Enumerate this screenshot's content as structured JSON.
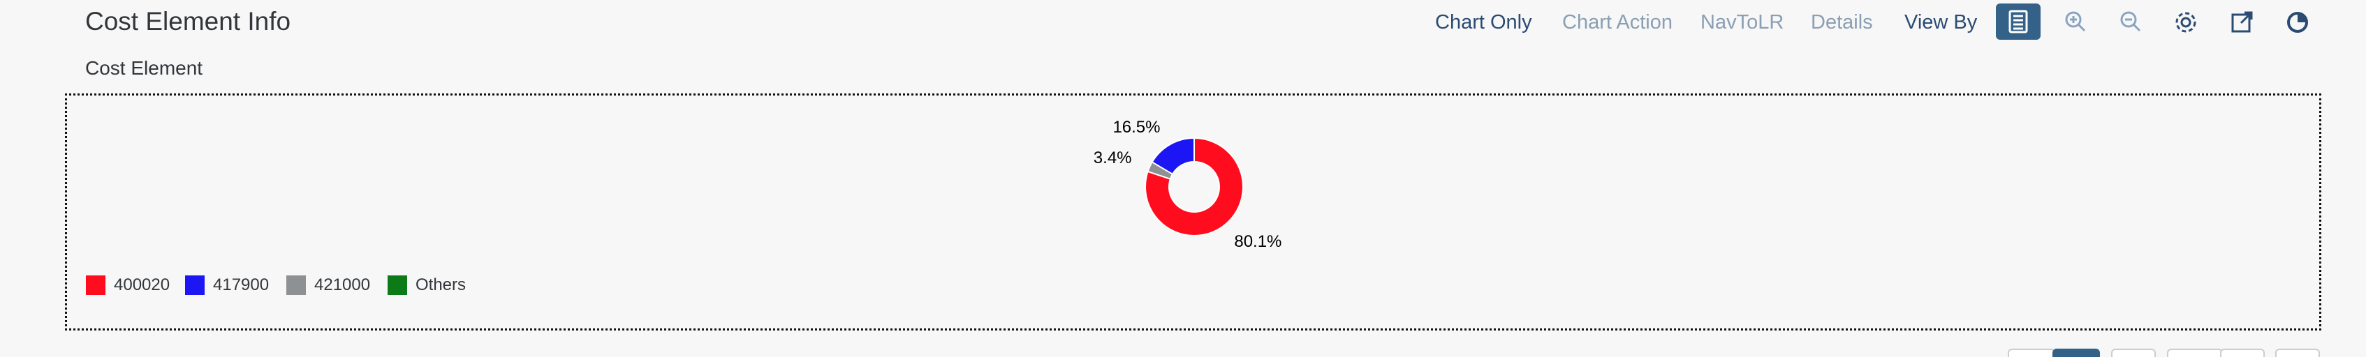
{
  "header": {
    "title": "Cost Element Info",
    "subtitle": "Cost Element"
  },
  "toolbar": {
    "chart_only": "Chart Only",
    "chart_action": "Chart Action",
    "nav_to_lr": "NavToLR",
    "details": "Details",
    "view_by": "View By",
    "icons": [
      "table-view-icon",
      "zoom-in-icon",
      "zoom-out-icon",
      "settings-icon",
      "fullscreen-icon",
      "chart-type-icon"
    ]
  },
  "colors": {
    "accent": "#346187",
    "slice_400020": "#ff0d1e",
    "slice_417900": "#1c16f5",
    "slice_421000": "#8d9193",
    "slice_others": "#0c7a16"
  },
  "chart_data": {
    "type": "pie",
    "donut": true,
    "categories": [
      "400020",
      "417900",
      "421000",
      "Others"
    ],
    "values": [
      80.1,
      16.5,
      3.4,
      0
    ],
    "data_labels": [
      "80.1%",
      "16.5%",
      "3.4%",
      ""
    ],
    "legend": {
      "placement": "bottom-left",
      "entries": [
        "400020",
        "417900",
        "421000",
        "Others"
      ]
    }
  }
}
